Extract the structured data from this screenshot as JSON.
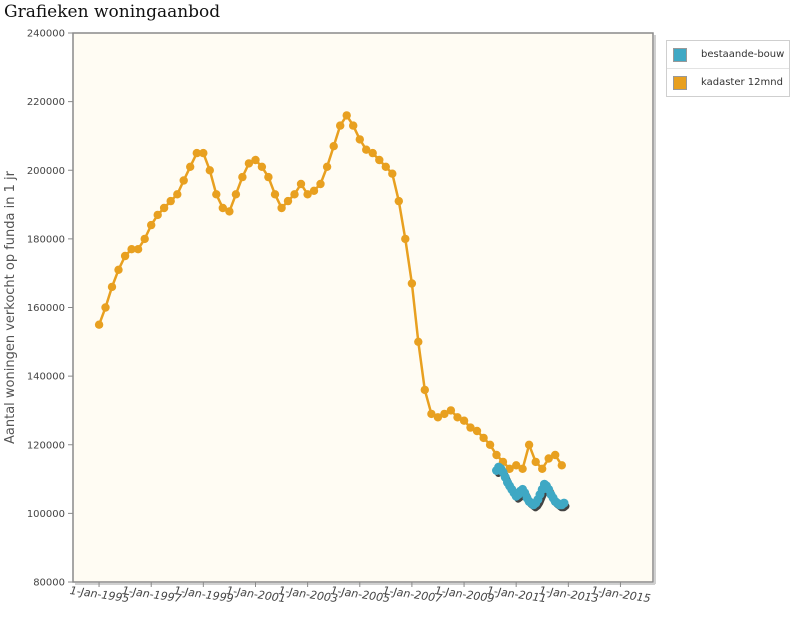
{
  "page": {
    "title": "Grafieken woningaanbod"
  },
  "chart_data": {
    "type": "line",
    "title": "Grafieken woningaanbod",
    "xlabel": "",
    "ylabel": "Aantal woningen verkocht op funda in 1 jr",
    "xlim": [
      "1994-01-01",
      "2016-04-01"
    ],
    "ylim": [
      80000,
      240000
    ],
    "yticks": [
      80000,
      100000,
      120000,
      140000,
      160000,
      180000,
      200000,
      220000,
      240000
    ],
    "ytick_labels": [
      "80000",
      "100000",
      "120000",
      "140000",
      "160000",
      "180000",
      "200000",
      "220000",
      "240000"
    ],
    "xticks": [
      "1995-01-01",
      "1997-01-01",
      "1999-01-01",
      "2001-01-01",
      "2003-01-01",
      "2005-01-01",
      "2007-01-01",
      "2009-01-01",
      "2011-01-01",
      "2013-01-01",
      "2015-01-01"
    ],
    "xtick_labels": [
      "1-Jan-1995",
      "1-Jan-1997",
      "1-Jan-1999",
      "1-Jan-2001",
      "1-Jan-2003",
      "1-Jan-2005",
      "1-Jan-2007",
      "1-Jan-2009",
      "1-Jan-2011",
      "1-Jan-2013",
      "1-Jan-2015"
    ],
    "grid": false,
    "legend_position": "top-right, outside plot",
    "colors": {
      "plot_background": "#fffcf3",
      "axis": "#8a8a8a"
    },
    "series": [
      {
        "name": "kadaster 12mnd",
        "color": "#e8a020",
        "x": [
          "1995-01-01",
          "1995-04-01",
          "1995-07-01",
          "1995-10-01",
          "1996-01-01",
          "1996-04-01",
          "1996-07-01",
          "1996-10-01",
          "1997-01-01",
          "1997-04-01",
          "1997-07-01",
          "1997-10-01",
          "1998-01-01",
          "1998-04-01",
          "1998-07-01",
          "1998-10-01",
          "1999-01-01",
          "1999-04-01",
          "1999-07-01",
          "1999-10-01",
          "2000-01-01",
          "2000-04-01",
          "2000-07-01",
          "2000-10-01",
          "2001-01-01",
          "2001-04-01",
          "2001-07-01",
          "2001-10-01",
          "2002-01-01",
          "2002-04-01",
          "2002-07-01",
          "2002-10-01",
          "2003-01-01",
          "2003-04-01",
          "2003-07-01",
          "2003-10-01",
          "2004-01-01",
          "2004-04-01",
          "2004-07-01",
          "2004-10-01",
          "2005-01-01",
          "2005-04-01",
          "2005-07-01",
          "2005-10-01",
          "2006-01-01",
          "2006-04-01",
          "2006-07-01",
          "2006-10-01",
          "2007-01-01",
          "2007-04-01",
          "2007-07-01",
          "2007-10-01",
          "2008-01-01",
          "2008-04-01",
          "2008-07-01",
          "2008-10-01",
          "2009-01-01",
          "2009-04-01",
          "2009-07-01",
          "2009-10-01",
          "2010-01-01",
          "2010-04-01",
          "2010-07-01",
          "2010-10-01",
          "2011-01-01",
          "2011-04-01",
          "2011-07-01",
          "2011-10-01",
          "2012-01-01",
          "2012-04-01",
          "2012-07-01",
          "2012-10-01"
        ],
        "values": [
          155000,
          160000,
          166000,
          171000,
          175000,
          177000,
          177000,
          180000,
          184000,
          187000,
          189000,
          191000,
          193000,
          197000,
          201000,
          205000,
          205000,
          200000,
          193000,
          189000,
          188000,
          193000,
          198000,
          202000,
          203000,
          201000,
          198000,
          193000,
          189000,
          191000,
          193000,
          196000,
          193000,
          194000,
          196000,
          201000,
          207000,
          213000,
          216000,
          213000,
          209000,
          206000,
          205000,
          203000,
          201000,
          199000,
          191000,
          180000,
          167000,
          150000,
          136000,
          129000,
          128000,
          129000,
          130000,
          128000,
          127000,
          125000,
          124000,
          122000,
          120000,
          117000,
          115000,
          113000,
          114000,
          113000,
          120000,
          115000,
          113000,
          116000,
          117000,
          114000
        ]
      },
      {
        "name": "bestaande-bouw",
        "color": "#3fa8c4",
        "x": [
          "2010-04-01",
          "2010-05-01",
          "2010-06-01",
          "2010-07-01",
          "2010-08-01",
          "2010-09-01",
          "2010-10-01",
          "2010-11-01",
          "2010-12-01",
          "2011-01-01",
          "2011-02-01",
          "2011-03-01",
          "2011-04-01",
          "2011-05-01",
          "2011-06-01",
          "2011-07-01",
          "2011-08-01",
          "2011-09-01",
          "2011-10-01",
          "2011-11-01",
          "2011-12-01",
          "2012-01-01",
          "2012-02-01",
          "2012-03-01",
          "2012-04-01",
          "2012-05-01",
          "2012-06-01",
          "2012-07-01",
          "2012-08-01",
          "2012-09-01",
          "2012-10-01",
          "2012-11-01"
        ],
        "values": [
          112500,
          113500,
          113000,
          112000,
          110500,
          109000,
          108000,
          107000,
          106000,
          105000,
          105500,
          106500,
          107000,
          106000,
          104500,
          103500,
          103000,
          102500,
          103000,
          104000,
          105500,
          107000,
          108500,
          108000,
          107000,
          105500,
          104500,
          103500,
          103000,
          102500,
          102500,
          103000
        ]
      }
    ]
  }
}
